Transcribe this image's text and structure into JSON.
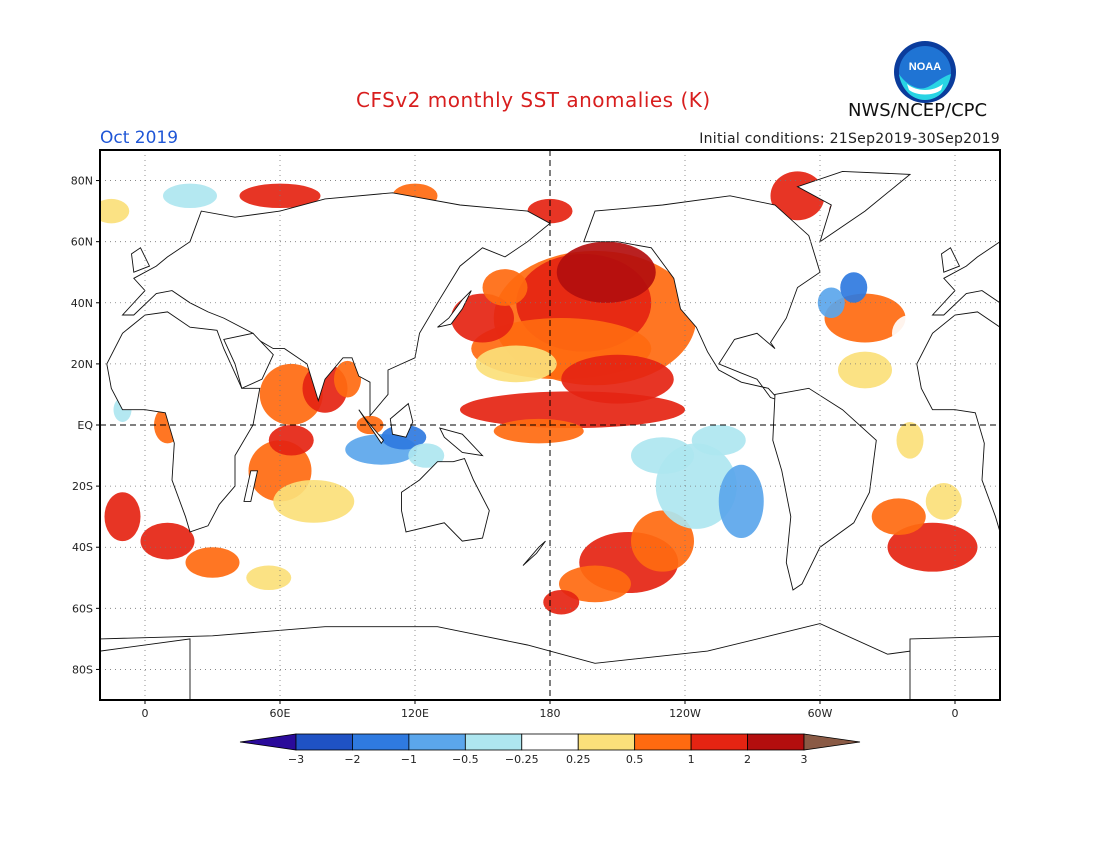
{
  "header": {
    "title": "CFSv2 monthly SST anomalies (K)",
    "month": "Oct 2019",
    "initial_conditions": "Initial conditions: 21Sep2019-30Sep2019",
    "agency": "NWS/NCEP/CPC",
    "logo_text": "NOAA"
  },
  "map": {
    "projection": "cylindrical equidistant, 0-360 centered at 180",
    "lon_range": [
      -20,
      380
    ],
    "lat_range": [
      -90,
      90
    ],
    "grid": "dotted",
    "lat_labels": [
      "80N",
      "60N",
      "40N",
      "20N",
      "EQ",
      "20S",
      "40S",
      "60S",
      "80S"
    ],
    "lat_values": [
      80,
      60,
      40,
      20,
      0,
      -20,
      -40,
      -60,
      -80
    ],
    "lon_labels": [
      "0",
      "60E",
      "120E",
      "180",
      "120W",
      "60W",
      "0"
    ],
    "lon_values": [
      0,
      60,
      120,
      180,
      240,
      300,
      360
    ],
    "dashed_lines": [
      "EQ",
      "180"
    ]
  },
  "colorbar": {
    "labels": [
      "-3",
      "-2",
      "-1",
      "-0.5",
      "-0.25",
      "0.25",
      "0.5",
      "1",
      "2",
      "3"
    ],
    "colors": [
      "#2a0a9a",
      "#1f52c4",
      "#2f7ae0",
      "#5ba6ec",
      "#aee6f0",
      "#ffffff",
      "#fbe07a",
      "#ff6a10",
      "#e52412",
      "#b30e0e",
      "#8a5a45"
    ]
  }
}
